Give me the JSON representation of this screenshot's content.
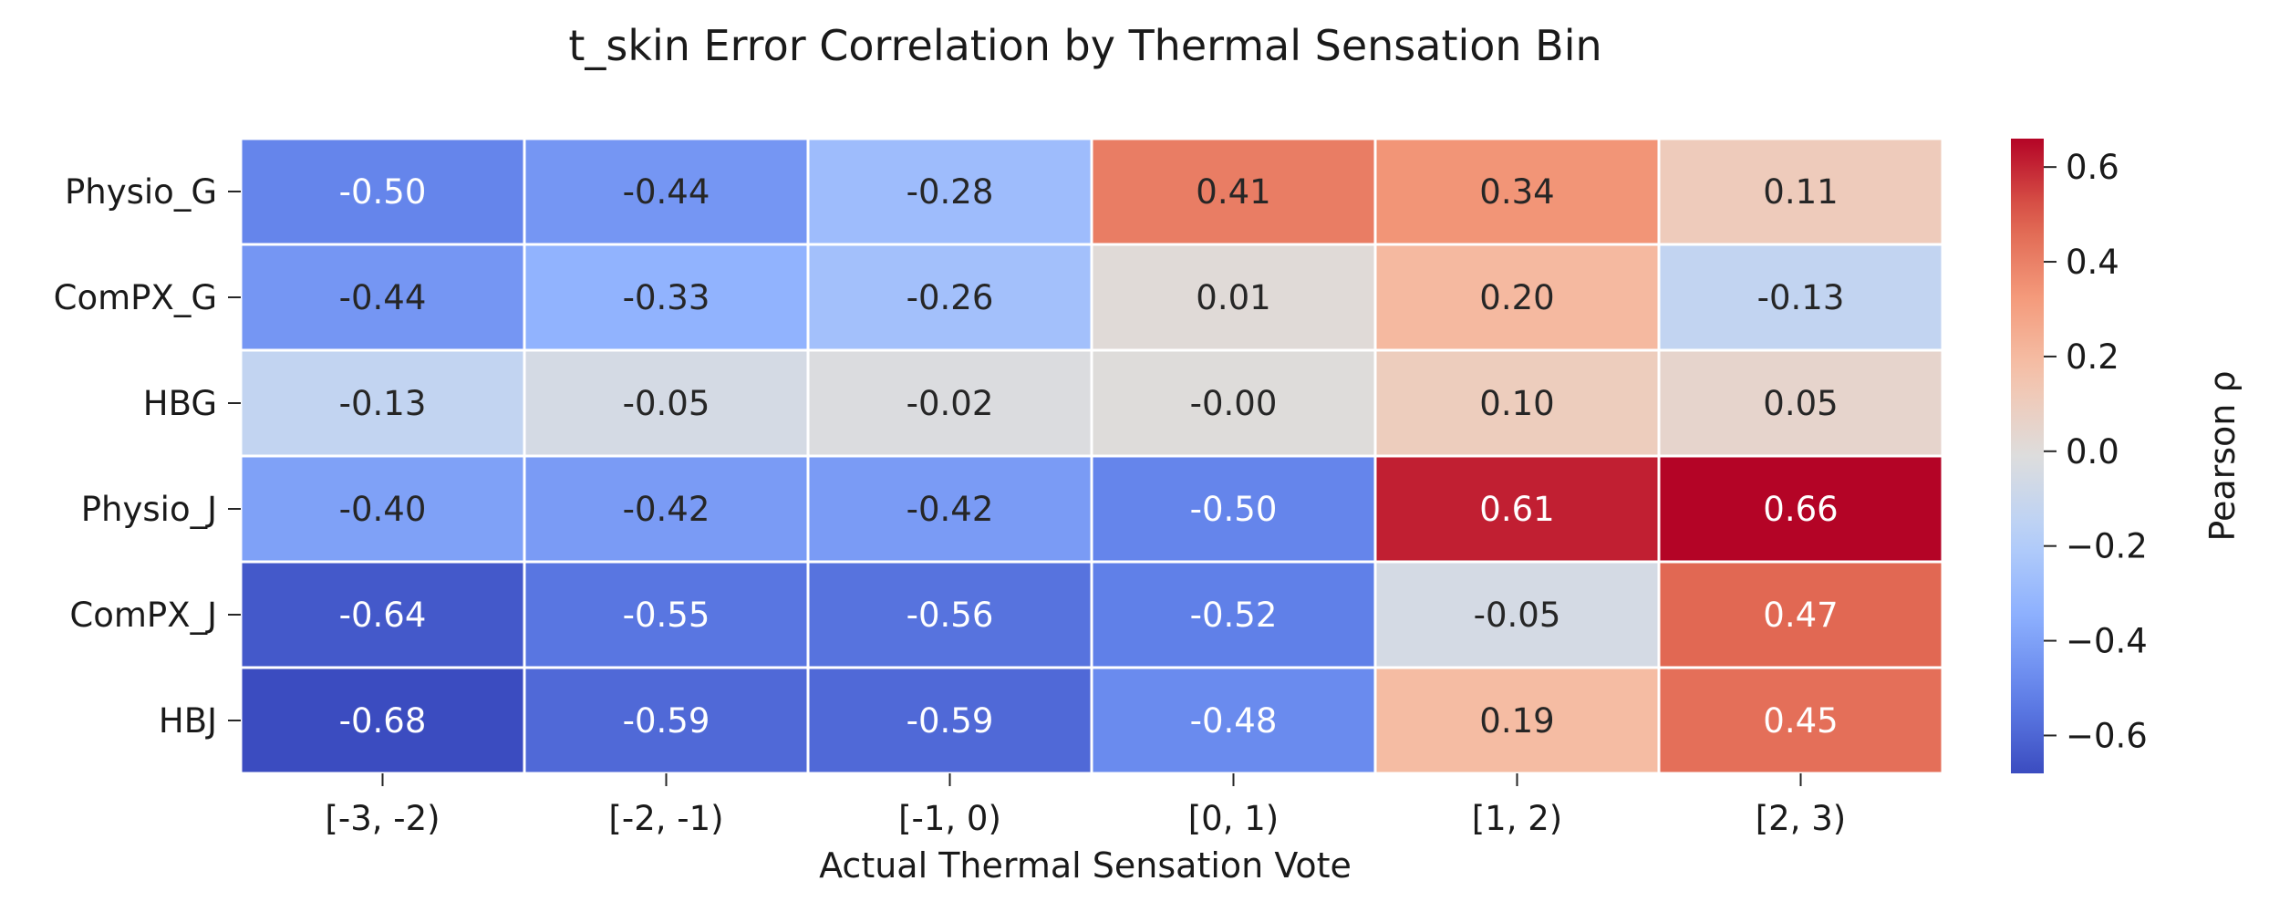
{
  "chart_data": {
    "type": "heatmap",
    "title": "t_skin Error Correlation by Thermal Sensation Bin",
    "xlabel": "Actual Thermal Sensation Vote",
    "ylabel": "",
    "x_categories": [
      "[-3, -2)",
      "[-2, -1)",
      "[-1, 0)",
      "[0, 1)",
      "[1, 2)",
      "[2, 3)"
    ],
    "y_categories": [
      "Physio_G",
      "ComPX_G",
      "HBG",
      "Physio_J",
      "ComPX_J",
      "HBJ"
    ],
    "values": [
      [
        -0.5,
        -0.44,
        -0.28,
        0.41,
        0.34,
        0.11
      ],
      [
        -0.44,
        -0.33,
        -0.26,
        0.01,
        0.2,
        -0.13
      ],
      [
        -0.13,
        -0.05,
        -0.02,
        -0.0,
        0.1,
        0.05
      ],
      [
        -0.4,
        -0.42,
        -0.42,
        -0.5,
        0.61,
        0.66
      ],
      [
        -0.64,
        -0.55,
        -0.56,
        -0.52,
        -0.05,
        0.47
      ],
      [
        -0.68,
        -0.59,
        -0.59,
        -0.48,
        0.19,
        0.45
      ]
    ],
    "cell_labels": [
      [
        "-0.50",
        "-0.44",
        "-0.28",
        "0.41",
        "0.34",
        "0.11"
      ],
      [
        "-0.44",
        "-0.33",
        "-0.26",
        "0.01",
        "0.20",
        "-0.13"
      ],
      [
        "-0.13",
        "-0.05",
        "-0.02",
        "-0.00",
        "0.10",
        "0.05"
      ],
      [
        "-0.40",
        "-0.42",
        "-0.42",
        "-0.50",
        "0.61",
        "0.66"
      ],
      [
        "-0.64",
        "-0.55",
        "-0.56",
        "-0.52",
        "-0.05",
        "0.47"
      ],
      [
        "-0.68",
        "-0.59",
        "-0.59",
        "-0.48",
        "0.19",
        "0.45"
      ]
    ],
    "colormap": "coolwarm",
    "vmin": -0.68,
    "vmax": 0.66,
    "colorbar": {
      "label": "Pearson ρ",
      "ticks": [
        0.6,
        0.4,
        0.2,
        0.0,
        -0.2,
        -0.4,
        -0.6
      ],
      "tick_labels": [
        "0.6",
        "0.4",
        "0.2",
        "0.0",
        "−0.2",
        "−0.4",
        "−0.6"
      ]
    },
    "grid": true,
    "cell_border_color": "#ffffff"
  }
}
